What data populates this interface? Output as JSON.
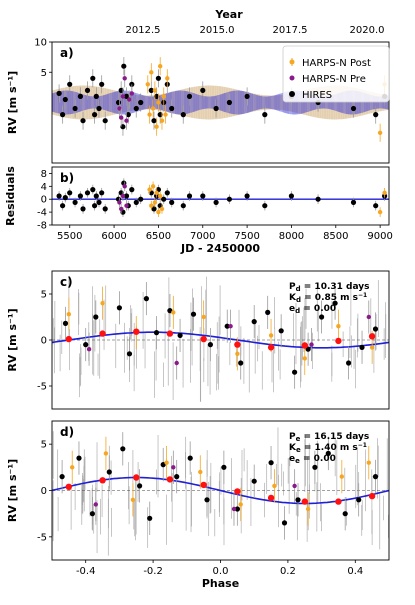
{
  "figure": {
    "top_axis_label": "Year",
    "top_ticks": [
      "2012.5",
      "2015.0",
      "2017.5",
      "2020.0"
    ]
  },
  "colors": {
    "harps_post": "#f5a623",
    "harps_pre": "#8a1a8a",
    "hires": "#000000",
    "model_blue": "#1f1fd6",
    "model_band_orange": "#c8a060",
    "binned": "#ff1111",
    "errorbar": "#9a9a9a"
  },
  "chart_data": [
    {
      "id": "a",
      "type": "scatter",
      "panel_label": "a)",
      "xlabel": "",
      "ylabel": "RV [m s⁻¹]",
      "xlim": [
        5300,
        9100
      ],
      "ylim": [
        -10,
        10
      ],
      "yticks": [
        5,
        10
      ],
      "legend": {
        "placement": "top-right",
        "entries": [
          "HARPS-N Post",
          "HARPS-N Pre",
          "HIRES"
        ]
      },
      "series": [
        {
          "name": "HIRES",
          "color_key": "hires",
          "x": [
            5380,
            5420,
            5450,
            5500,
            5560,
            5620,
            5650,
            5700,
            5760,
            5780,
            5800,
            5830,
            5860,
            5900,
            6050,
            6080,
            6100,
            6110,
            6140,
            6160,
            6200,
            6250,
            6300,
            6420,
            6450,
            6480,
            6500,
            6520,
            6560,
            6600,
            6650,
            6780,
            6850,
            7000,
            7150,
            7300,
            7500,
            7700,
            8000,
            8300,
            8700,
            8950,
            9050
          ],
          "y": [
            1.5,
            -2,
            0.5,
            3,
            -1,
            1,
            -3,
            2,
            4,
            -2,
            1,
            -1,
            3,
            -3,
            0,
            2,
            -4,
            6,
            1,
            -2,
            3,
            -1,
            0,
            2,
            -3,
            1,
            4,
            -2,
            0,
            3,
            -1,
            -2,
            1,
            2,
            -1,
            0,
            1,
            -2,
            1,
            0,
            -1,
            -2,
            1
          ]
        },
        {
          "name": "HARPS-N Pre",
          "color_key": "harps_pre",
          "x": [
            6060,
            6080,
            6100,
            6120,
            6140,
            6170,
            6200
          ],
          "y": [
            -1,
            -2.5,
            1,
            4,
            -3,
            0.5,
            1.5
          ]
        },
        {
          "name": "HARPS-N Post",
          "color_key": "harps_post",
          "x": [
            6380,
            6400,
            6420,
            6440,
            6460,
            6480,
            6500,
            6520,
            6540,
            6560,
            6580,
            6600,
            9000,
            9050
          ],
          "y": [
            3,
            -2,
            5,
            -1,
            2,
            -4,
            0,
            6,
            -3,
            1,
            -2,
            4,
            -5,
            3
          ]
        }
      ]
    },
    {
      "id": "b",
      "type": "scatter",
      "panel_label": "b)",
      "xlabel": "JD - 2450000",
      "ylabel": "Residuals",
      "xlim": [
        5300,
        9100
      ],
      "ylim": [
        -8,
        10
      ],
      "xticks": [
        5500,
        6000,
        6500,
        7000,
        7500,
        8000,
        8500,
        9000
      ],
      "yticks": [
        -8,
        -4,
        0,
        4,
        8
      ],
      "series": [
        {
          "name": "HIRES",
          "color_key": "hires",
          "x": [
            5380,
            5420,
            5450,
            5500,
            5560,
            5620,
            5650,
            5700,
            5760,
            5780,
            5800,
            5830,
            5860,
            5900,
            6050,
            6080,
            6100,
            6110,
            6140,
            6160,
            6200,
            6250,
            6300,
            6420,
            6450,
            6480,
            6500,
            6520,
            6560,
            6600,
            6650,
            6780,
            6850,
            7000,
            7150,
            7300,
            7500,
            7700,
            8000,
            8300,
            8700,
            8950,
            9050
          ],
          "y": [
            1,
            -2,
            0.5,
            2,
            -1,
            1,
            -3,
            2,
            3,
            -2,
            1,
            -1,
            2,
            -3,
            0,
            2,
            -4,
            5,
            1,
            -2,
            3,
            -1,
            0,
            2,
            -3,
            1,
            3,
            -2,
            0,
            2,
            -1,
            -2,
            1,
            1,
            -1,
            0,
            1,
            -2,
            1,
            0,
            -1,
            -2,
            1
          ]
        },
        {
          "name": "HARPS-N Pre",
          "color_key": "harps_pre",
          "x": [
            6060,
            6080,
            6100,
            6120,
            6140
          ],
          "y": [
            -1,
            -3,
            1,
            4,
            -2
          ]
        },
        {
          "name": "HARPS-N Post",
          "color_key": "harps_post",
          "x": [
            6400,
            6420,
            6440,
            6460,
            6480,
            6500,
            6520,
            6540,
            9000,
            9050
          ],
          "y": [
            3,
            -2,
            4,
            -1,
            2,
            -4,
            1,
            -3,
            -4,
            2
          ]
        }
      ]
    },
    {
      "id": "c",
      "type": "scatter",
      "panel_label": "c)",
      "xlabel": "",
      "ylabel": "RV [m s⁻¹]",
      "xlim": [
        -0.5,
        0.5
      ],
      "ylim": [
        -7.5,
        7.5
      ],
      "yticks": [
        -5,
        0,
        5
      ],
      "params": [
        "P",
        "d",
        " = 10.31 days",
        "K",
        "d",
        " = 0.85 m s",
        "e",
        "d",
        " = 0.00"
      ],
      "series": [
        {
          "name": "HIRES",
          "color_key": "hires",
          "x": [
            -0.46,
            -0.4,
            -0.37,
            -0.3,
            -0.27,
            -0.22,
            -0.19,
            -0.15,
            -0.12,
            -0.08,
            -0.03,
            0.02,
            0.06,
            0.1,
            0.14,
            0.18,
            0.22,
            0.26,
            0.3,
            0.34,
            0.38,
            0.42,
            0.46
          ],
          "y": [
            1.8,
            -0.5,
            2.5,
            3.5,
            -1.5,
            4.5,
            0.8,
            3.2,
            0.5,
            2.8,
            -0.5,
            1.5,
            -2.5,
            2,
            3,
            1,
            -3.5,
            -1,
            2.5,
            4,
            -2.5,
            -0.8,
            1.2
          ]
        },
        {
          "name": "HARPS-N Pre",
          "color_key": "harps_pre",
          "x": [
            -0.39,
            -0.13,
            0.03,
            0.27,
            0.44
          ],
          "y": [
            -1,
            -2.5,
            1.5,
            -0.5,
            2.5
          ]
        },
        {
          "name": "HARPS-N Post",
          "color_key": "harps_post",
          "x": [
            -0.45,
            -0.35,
            -0.25,
            -0.14,
            -0.05,
            0.05,
            0.15,
            0.25,
            0.35,
            0.45
          ],
          "y": [
            2.8,
            4,
            0.8,
            3,
            2.5,
            -1.5,
            0.5,
            -2,
            1.5,
            -0.8
          ]
        },
        {
          "name": "binned",
          "color_key": "binned",
          "x": [
            -0.45,
            -0.35,
            -0.25,
            -0.15,
            -0.05,
            0.05,
            0.15,
            0.25,
            0.35,
            0.45
          ],
          "y": [
            0.1,
            0.7,
            0.9,
            0.7,
            0.1,
            -0.5,
            -0.8,
            -0.6,
            -0.1,
            0.4
          ]
        }
      ]
    },
    {
      "id": "d",
      "type": "scatter",
      "panel_label": "d)",
      "xlabel": "Phase",
      "ylabel": "RV [m s⁻¹]",
      "xlim": [
        -0.5,
        0.5
      ],
      "ylim": [
        -7.5,
        7.5
      ],
      "xticks": [
        -0.4,
        -0.2,
        0.0,
        0.2,
        0.4
      ],
      "yticks": [
        -5,
        0,
        5
      ],
      "params": [
        "P",
        "e",
        " = 16.15 days",
        "K",
        "e",
        " = 1.40 m s",
        "e",
        "e",
        " = 0.00"
      ],
      "series": [
        {
          "name": "HIRES",
          "color_key": "hires",
          "x": [
            -0.47,
            -0.42,
            -0.38,
            -0.33,
            -0.29,
            -0.24,
            -0.21,
            -0.17,
            -0.13,
            -0.09,
            -0.04,
            0.01,
            0.05,
            0.1,
            0.15,
            0.19,
            0.23,
            0.28,
            0.32,
            0.37,
            0.41,
            0.46
          ],
          "y": [
            1.5,
            3.5,
            -2.5,
            2,
            4.5,
            0.5,
            -3,
            2.8,
            1.5,
            3.5,
            -1,
            2.5,
            -2,
            1,
            3,
            -3.5,
            -1,
            2.5,
            4,
            -2.5,
            -1,
            1.5
          ]
        },
        {
          "name": "HARPS-N Pre",
          "color_key": "harps_pre",
          "x": [
            -0.37,
            -0.14,
            0.04,
            0.22
          ],
          "y": [
            -1.5,
            2.5,
            -2,
            0.5
          ]
        },
        {
          "name": "HARPS-N Post",
          "color_key": "harps_post",
          "x": [
            -0.44,
            -0.34,
            -0.26,
            -0.16,
            -0.06,
            0.06,
            0.16,
            0.26,
            0.36,
            0.44
          ],
          "y": [
            2.5,
            4,
            -1,
            3,
            2,
            -1.5,
            0.5,
            -2,
            1.5,
            3
          ]
        },
        {
          "name": "binned",
          "color_key": "binned",
          "x": [
            -0.45,
            -0.35,
            -0.25,
            -0.15,
            -0.05,
            0.05,
            0.15,
            0.25,
            0.35,
            0.45
          ],
          "y": [
            0.4,
            1.1,
            1.4,
            1.2,
            0.6,
            -0.1,
            -0.8,
            -1.2,
            -1.2,
            -0.6
          ]
        }
      ]
    }
  ]
}
